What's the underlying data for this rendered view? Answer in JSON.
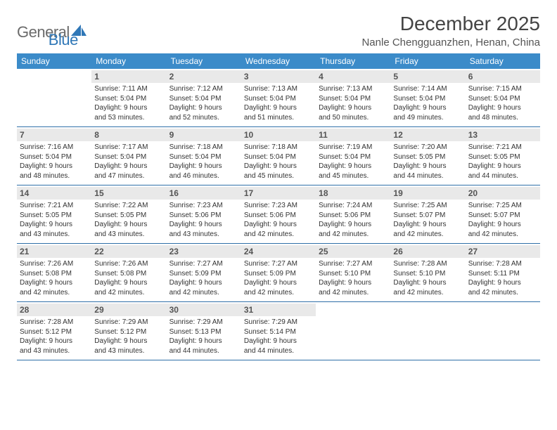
{
  "logo": {
    "text1": "General",
    "text2": "Blue"
  },
  "title": "December 2025",
  "location": "Nanle Chengguanzhen, Henan, China",
  "colors": {
    "header_bg": "#3b8bc9",
    "header_text": "#ffffff",
    "week_border": "#2f6fa8",
    "daynum_bg": "#e9e9e9",
    "logo_gray": "#6b6b6b",
    "logo_blue": "#2f77b7"
  },
  "day_names": [
    "Sunday",
    "Monday",
    "Tuesday",
    "Wednesday",
    "Thursday",
    "Friday",
    "Saturday"
  ],
  "weeks": [
    [
      {
        "day": "",
        "lines": []
      },
      {
        "day": "1",
        "lines": [
          "Sunrise: 7:11 AM",
          "Sunset: 5:04 PM",
          "Daylight: 9 hours",
          "and 53 minutes."
        ]
      },
      {
        "day": "2",
        "lines": [
          "Sunrise: 7:12 AM",
          "Sunset: 5:04 PM",
          "Daylight: 9 hours",
          "and 52 minutes."
        ]
      },
      {
        "day": "3",
        "lines": [
          "Sunrise: 7:13 AM",
          "Sunset: 5:04 PM",
          "Daylight: 9 hours",
          "and 51 minutes."
        ]
      },
      {
        "day": "4",
        "lines": [
          "Sunrise: 7:13 AM",
          "Sunset: 5:04 PM",
          "Daylight: 9 hours",
          "and 50 minutes."
        ]
      },
      {
        "day": "5",
        "lines": [
          "Sunrise: 7:14 AM",
          "Sunset: 5:04 PM",
          "Daylight: 9 hours",
          "and 49 minutes."
        ]
      },
      {
        "day": "6",
        "lines": [
          "Sunrise: 7:15 AM",
          "Sunset: 5:04 PM",
          "Daylight: 9 hours",
          "and 48 minutes."
        ]
      }
    ],
    [
      {
        "day": "7",
        "lines": [
          "Sunrise: 7:16 AM",
          "Sunset: 5:04 PM",
          "Daylight: 9 hours",
          "and 48 minutes."
        ]
      },
      {
        "day": "8",
        "lines": [
          "Sunrise: 7:17 AM",
          "Sunset: 5:04 PM",
          "Daylight: 9 hours",
          "and 47 minutes."
        ]
      },
      {
        "day": "9",
        "lines": [
          "Sunrise: 7:18 AM",
          "Sunset: 5:04 PM",
          "Daylight: 9 hours",
          "and 46 minutes."
        ]
      },
      {
        "day": "10",
        "lines": [
          "Sunrise: 7:18 AM",
          "Sunset: 5:04 PM",
          "Daylight: 9 hours",
          "and 45 minutes."
        ]
      },
      {
        "day": "11",
        "lines": [
          "Sunrise: 7:19 AM",
          "Sunset: 5:04 PM",
          "Daylight: 9 hours",
          "and 45 minutes."
        ]
      },
      {
        "day": "12",
        "lines": [
          "Sunrise: 7:20 AM",
          "Sunset: 5:05 PM",
          "Daylight: 9 hours",
          "and 44 minutes."
        ]
      },
      {
        "day": "13",
        "lines": [
          "Sunrise: 7:21 AM",
          "Sunset: 5:05 PM",
          "Daylight: 9 hours",
          "and 44 minutes."
        ]
      }
    ],
    [
      {
        "day": "14",
        "lines": [
          "Sunrise: 7:21 AM",
          "Sunset: 5:05 PM",
          "Daylight: 9 hours",
          "and 43 minutes."
        ]
      },
      {
        "day": "15",
        "lines": [
          "Sunrise: 7:22 AM",
          "Sunset: 5:05 PM",
          "Daylight: 9 hours",
          "and 43 minutes."
        ]
      },
      {
        "day": "16",
        "lines": [
          "Sunrise: 7:23 AM",
          "Sunset: 5:06 PM",
          "Daylight: 9 hours",
          "and 43 minutes."
        ]
      },
      {
        "day": "17",
        "lines": [
          "Sunrise: 7:23 AM",
          "Sunset: 5:06 PM",
          "Daylight: 9 hours",
          "and 42 minutes."
        ]
      },
      {
        "day": "18",
        "lines": [
          "Sunrise: 7:24 AM",
          "Sunset: 5:06 PM",
          "Daylight: 9 hours",
          "and 42 minutes."
        ]
      },
      {
        "day": "19",
        "lines": [
          "Sunrise: 7:25 AM",
          "Sunset: 5:07 PM",
          "Daylight: 9 hours",
          "and 42 minutes."
        ]
      },
      {
        "day": "20",
        "lines": [
          "Sunrise: 7:25 AM",
          "Sunset: 5:07 PM",
          "Daylight: 9 hours",
          "and 42 minutes."
        ]
      }
    ],
    [
      {
        "day": "21",
        "lines": [
          "Sunrise: 7:26 AM",
          "Sunset: 5:08 PM",
          "Daylight: 9 hours",
          "and 42 minutes."
        ]
      },
      {
        "day": "22",
        "lines": [
          "Sunrise: 7:26 AM",
          "Sunset: 5:08 PM",
          "Daylight: 9 hours",
          "and 42 minutes."
        ]
      },
      {
        "day": "23",
        "lines": [
          "Sunrise: 7:27 AM",
          "Sunset: 5:09 PM",
          "Daylight: 9 hours",
          "and 42 minutes."
        ]
      },
      {
        "day": "24",
        "lines": [
          "Sunrise: 7:27 AM",
          "Sunset: 5:09 PM",
          "Daylight: 9 hours",
          "and 42 minutes."
        ]
      },
      {
        "day": "25",
        "lines": [
          "Sunrise: 7:27 AM",
          "Sunset: 5:10 PM",
          "Daylight: 9 hours",
          "and 42 minutes."
        ]
      },
      {
        "day": "26",
        "lines": [
          "Sunrise: 7:28 AM",
          "Sunset: 5:10 PM",
          "Daylight: 9 hours",
          "and 42 minutes."
        ]
      },
      {
        "day": "27",
        "lines": [
          "Sunrise: 7:28 AM",
          "Sunset: 5:11 PM",
          "Daylight: 9 hours",
          "and 42 minutes."
        ]
      }
    ],
    [
      {
        "day": "28",
        "lines": [
          "Sunrise: 7:28 AM",
          "Sunset: 5:12 PM",
          "Daylight: 9 hours",
          "and 43 minutes."
        ]
      },
      {
        "day": "29",
        "lines": [
          "Sunrise: 7:29 AM",
          "Sunset: 5:12 PM",
          "Daylight: 9 hours",
          "and 43 minutes."
        ]
      },
      {
        "day": "30",
        "lines": [
          "Sunrise: 7:29 AM",
          "Sunset: 5:13 PM",
          "Daylight: 9 hours",
          "and 44 minutes."
        ]
      },
      {
        "day": "31",
        "lines": [
          "Sunrise: 7:29 AM",
          "Sunset: 5:14 PM",
          "Daylight: 9 hours",
          "and 44 minutes."
        ]
      },
      {
        "day": "",
        "lines": []
      },
      {
        "day": "",
        "lines": []
      },
      {
        "day": "",
        "lines": []
      }
    ]
  ]
}
